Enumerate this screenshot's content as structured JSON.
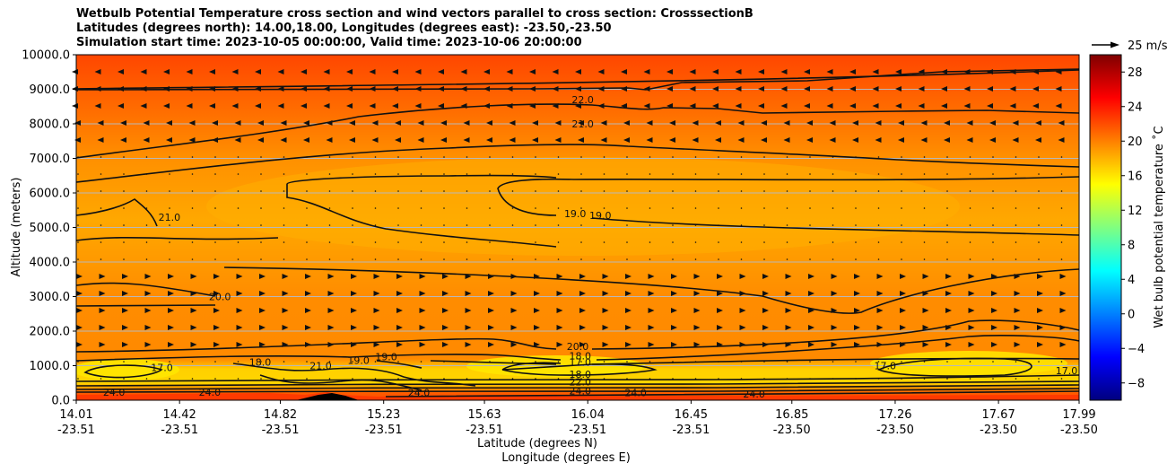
{
  "title_lines": [
    "Wetbulb Potential Temperature cross section and wind vectors parallel to cross section: CrosssectionB",
    "Latitudes (degrees north): 14.00,18.00, Longitudes (degrees east): -23.50,-23.50",
    "Simulation start time: 2023-10-05 00:00:00, Valid time: 2023-10-06 20:00:00"
  ],
  "chart_data": {
    "type": "heatmap",
    "ylabel": "Altitude (meters)",
    "xlabel_1": "Latitude (degrees N)",
    "xlabel_2": "Longitude (degrees E)",
    "colorbar_label": "Wet bulb potential temperature ˚C",
    "quiver_key_label": "25 m/s",
    "ylim": [
      0,
      10000
    ],
    "y_ticks": [
      0,
      1000,
      2000,
      3000,
      4000,
      5000,
      6000,
      7000,
      8000,
      9000,
      10000
    ],
    "y_tick_labels": [
      "0.0",
      "1000.0",
      "2000.0",
      "3000.0",
      "4000.0",
      "5000.0",
      "6000.0",
      "7000.0",
      "8000.0",
      "9000.0",
      "10000.0"
    ],
    "x_ticks": [
      {
        "lat": "14.01",
        "lon": "-23.51"
      },
      {
        "lat": "14.42",
        "lon": "-23.51"
      },
      {
        "lat": "14.82",
        "lon": "-23.51"
      },
      {
        "lat": "15.23",
        "lon": "-23.51"
      },
      {
        "lat": "15.63",
        "lon": "-23.51"
      },
      {
        "lat": "16.04",
        "lon": "-23.51"
      },
      {
        "lat": "16.45",
        "lon": "-23.51"
      },
      {
        "lat": "16.85",
        "lon": "-23.50"
      },
      {
        "lat": "17.26",
        "lon": "-23.50"
      },
      {
        "lat": "17.67",
        "lon": "-23.50"
      },
      {
        "lat": "17.99",
        "lon": "-23.50"
      }
    ],
    "colorbar_range": [
      -10,
      30
    ],
    "colorbar_ticks": [
      -8,
      -4,
      0,
      4,
      8,
      12,
      16,
      20,
      24,
      28
    ],
    "colorbar_tick_labels": [
      "−8",
      "−4",
      "0",
      "4",
      "8",
      "12",
      "16",
      "20",
      "24",
      "28"
    ],
    "colormap": [
      "#00007f",
      "#0000ff",
      "#0080ff",
      "#00ffff",
      "#80ff80",
      "#ffff00",
      "#ff8000",
      "#ff0000",
      "#7f0000"
    ],
    "contour_labels": [
      {
        "text": "22.0",
        "lat": 16.02,
        "alt": 8600
      },
      {
        "text": "21.0",
        "lat": 16.02,
        "alt": 7900
      },
      {
        "text": "21.0",
        "lat": 14.38,
        "alt": 5200
      },
      {
        "text": "19.0",
        "lat": 15.99,
        "alt": 5300
      },
      {
        "text": "19.0",
        "lat": 16.09,
        "alt": 5250
      },
      {
        "text": "20.0",
        "lat": 14.58,
        "alt": 2900
      },
      {
        "text": "20.0",
        "lat": 16.0,
        "alt": 1450
      },
      {
        "text": "18.0",
        "lat": 16.01,
        "alt": 1180
      },
      {
        "text": "17.0",
        "lat": 16.01,
        "alt": 1000
      },
      {
        "text": "19.0",
        "lat": 15.24,
        "alt": 1150
      },
      {
        "text": "19.0",
        "lat": 15.13,
        "alt": 1050
      },
      {
        "text": "21.0",
        "lat": 14.98,
        "alt": 900
      },
      {
        "text": "18.0",
        "lat": 14.74,
        "alt": 1000
      },
      {
        "text": "17.0",
        "lat": 14.35,
        "alt": 850
      },
      {
        "text": "18.0",
        "lat": 16.01,
        "alt": 650
      },
      {
        "text": "22.0",
        "lat": 16.01,
        "alt": 430
      },
      {
        "text": "24.0",
        "lat": 16.01,
        "alt": 170
      },
      {
        "text": "24.0",
        "lat": 14.16,
        "alt": 130
      },
      {
        "text": "24.0",
        "lat": 14.54,
        "alt": 130
      },
      {
        "text": "24.0",
        "lat": 15.37,
        "alt": 120
      },
      {
        "text": "24.0",
        "lat": 16.23,
        "alt": 120
      },
      {
        "text": "24.0",
        "lat": 16.7,
        "alt": 80
      },
      {
        "text": "17.0",
        "lat": 17.22,
        "alt": 900
      },
      {
        "text": "17.0",
        "lat": 17.94,
        "alt": 750
      }
    ]
  }
}
